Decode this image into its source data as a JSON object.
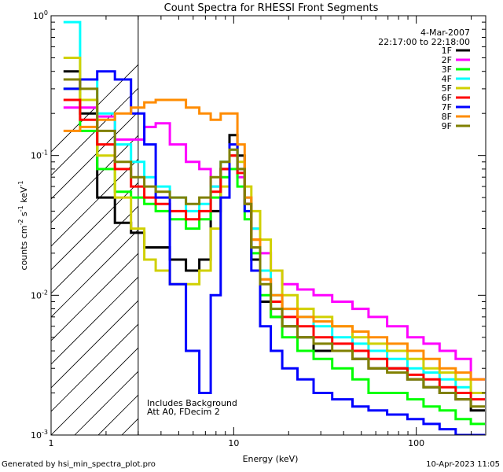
{
  "chart_data": {
    "type": "line",
    "title": "Count Spectra for RHESSI Front Segments",
    "xlabel": "Energy (keV)",
    "ylabel_parts": [
      "counts cm",
      "-2",
      " s",
      "-1",
      " keV",
      "-1"
    ],
    "xscale": "log",
    "yscale": "log",
    "xlim": [
      1,
      240
    ],
    "ylim": [
      0.001,
      1
    ],
    "x_ticks": [
      {
        "value": 1,
        "label": "1"
      },
      {
        "value": 10,
        "label": "10"
      },
      {
        "value": 100,
        "label": "100"
      }
    ],
    "y_ticks": [
      {
        "value": 0.001,
        "base": "10",
        "exp": "-3"
      },
      {
        "value": 0.01,
        "base": "10",
        "exp": "-2"
      },
      {
        "value": 0.1,
        "base": "10",
        "exp": "-1"
      },
      {
        "value": 1,
        "base": "10",
        "exp": "0"
      }
    ],
    "header_date": "4-Mar-2007",
    "header_time": "22:17:00 to 22:18:00",
    "annotations": [
      "Includes Background",
      "Att A0, FDecim 2"
    ],
    "hatched_region_upper_energy": 3,
    "series": [
      {
        "name": "1F",
        "color": "#000000",
        "x": [
          1.3,
          1.6,
          2.0,
          2.5,
          3.0,
          3.5,
          4.0,
          5.0,
          6.0,
          7.0,
          8.0,
          9.0,
          10.0,
          11.0,
          12.0,
          13.0,
          15.0,
          17.0,
          20.0,
          25.0,
          30.0,
          40.0,
          50.0,
          60.0,
          80.0,
          100.0,
          120.0,
          150.0,
          180.0,
          220.0
        ],
        "values": [
          0.4,
          0.2,
          0.05,
          0.033,
          0.028,
          0.022,
          0.022,
          0.018,
          0.015,
          0.018,
          0.04,
          0.08,
          0.14,
          0.1,
          0.045,
          0.018,
          0.009,
          0.007,
          0.006,
          0.005,
          0.004,
          0.004,
          0.0035,
          0.003,
          0.003,
          0.0025,
          0.0022,
          0.002,
          0.0018,
          0.0015
        ]
      },
      {
        "name": "2F",
        "color": "#ff00ff",
        "x": [
          1.3,
          1.6,
          2.0,
          2.5,
          3.0,
          3.5,
          4.0,
          5.0,
          6.0,
          7.0,
          8.0,
          9.0,
          10.0,
          11.0,
          12.0,
          13.0,
          15.0,
          17.0,
          20.0,
          25.0,
          30.0,
          40.0,
          50.0,
          60.0,
          80.0,
          100.0,
          120.0,
          150.0,
          180.0,
          220.0
        ],
        "values": [
          0.22,
          0.22,
          0.19,
          0.13,
          0.13,
          0.16,
          0.17,
          0.12,
          0.09,
          0.08,
          0.06,
          0.08,
          0.1,
          0.07,
          0.05,
          0.03,
          0.02,
          0.015,
          0.012,
          0.011,
          0.01,
          0.009,
          0.008,
          0.007,
          0.006,
          0.005,
          0.0045,
          0.004,
          0.0035,
          0.0025
        ]
      },
      {
        "name": "3F",
        "color": "#00ff00",
        "x": [
          1.3,
          1.6,
          2.0,
          2.5,
          3.0,
          3.5,
          4.0,
          5.0,
          6.0,
          7.0,
          8.0,
          9.0,
          10.0,
          11.0,
          12.0,
          13.0,
          15.0,
          17.0,
          20.0,
          25.0,
          30.0,
          40.0,
          50.0,
          60.0,
          80.0,
          100.0,
          120.0,
          150.0,
          180.0,
          220.0
        ],
        "values": [
          0.3,
          0.15,
          0.08,
          0.055,
          0.05,
          0.045,
          0.04,
          0.035,
          0.03,
          0.035,
          0.05,
          0.07,
          0.08,
          0.06,
          0.035,
          0.02,
          0.01,
          0.007,
          0.005,
          0.004,
          0.0035,
          0.003,
          0.0025,
          0.002,
          0.002,
          0.0018,
          0.0016,
          0.0015,
          0.0013,
          0.0012
        ]
      },
      {
        "name": "4F",
        "color": "#00ffff",
        "x": [
          1.3,
          1.6,
          2.0,
          2.5,
          3.0,
          3.5,
          4.0,
          5.0,
          6.0,
          7.0,
          8.0,
          9.0,
          10.0,
          11.0,
          12.0,
          13.0,
          15.0,
          17.0,
          20.0,
          25.0,
          30.0,
          40.0,
          50.0,
          60.0,
          80.0,
          100.0,
          120.0,
          150.0,
          180.0,
          220.0
        ],
        "values": [
          0.9,
          0.35,
          0.2,
          0.12,
          0.09,
          0.07,
          0.06,
          0.05,
          0.04,
          0.045,
          0.06,
          0.09,
          0.11,
          0.08,
          0.05,
          0.03,
          0.015,
          0.01,
          0.008,
          0.007,
          0.006,
          0.005,
          0.0045,
          0.004,
          0.0035,
          0.003,
          0.0028,
          0.0025,
          0.0022,
          0.002
        ]
      },
      {
        "name": "5F",
        "color": "#d0d000",
        "x": [
          1.3,
          1.6,
          2.0,
          2.5,
          3.0,
          3.5,
          4.0,
          5.0,
          6.0,
          7.0,
          8.0,
          9.0,
          10.0,
          11.0,
          12.0,
          13.0,
          15.0,
          17.0,
          20.0,
          25.0,
          30.0,
          40.0,
          50.0,
          60.0,
          80.0,
          100.0,
          120.0,
          150.0,
          180.0,
          220.0
        ],
        "values": [
          0.5,
          0.25,
          0.1,
          0.05,
          0.03,
          0.018,
          0.015,
          0.012,
          0.012,
          0.015,
          0.03,
          0.06,
          0.1,
          0.09,
          0.06,
          0.04,
          0.025,
          0.015,
          0.01,
          0.008,
          0.007,
          0.006,
          0.005,
          0.0045,
          0.004,
          0.0035,
          0.003,
          0.0028,
          0.0025,
          0.002
        ]
      },
      {
        "name": "6F",
        "color": "#ff0000",
        "x": [
          1.3,
          1.6,
          2.0,
          2.5,
          3.0,
          3.5,
          4.0,
          5.0,
          6.0,
          7.0,
          8.0,
          9.0,
          10.0,
          11.0,
          12.0,
          13.0,
          15.0,
          17.0,
          20.0,
          25.0,
          30.0,
          40.0,
          50.0,
          60.0,
          80.0,
          100.0,
          120.0,
          150.0,
          180.0,
          220.0
        ],
        "values": [
          0.25,
          0.18,
          0.12,
          0.08,
          0.06,
          0.05,
          0.045,
          0.04,
          0.035,
          0.04,
          0.055,
          0.08,
          0.1,
          0.075,
          0.045,
          0.025,
          0.013,
          0.009,
          0.007,
          0.006,
          0.005,
          0.0045,
          0.004,
          0.0035,
          0.003,
          0.0027,
          0.0025,
          0.0022,
          0.002,
          0.0018
        ]
      },
      {
        "name": "7F",
        "color": "#0000ff",
        "x": [
          1.3,
          1.6,
          2.0,
          2.5,
          3.0,
          3.5,
          4.0,
          5.0,
          6.0,
          7.0,
          8.0,
          9.0,
          10.0,
          11.0,
          12.0,
          13.0,
          15.0,
          17.0,
          20.0,
          25.0,
          30.0,
          40.0,
          50.0,
          60.0,
          80.0,
          100.0,
          120.0,
          150.0,
          180.0,
          220.0
        ],
        "values": [
          0.3,
          0.35,
          0.4,
          0.35,
          0.2,
          0.12,
          0.05,
          0.012,
          0.004,
          0.002,
          0.01,
          0.05,
          0.12,
          0.08,
          0.04,
          0.015,
          0.006,
          0.004,
          0.003,
          0.0025,
          0.002,
          0.0018,
          0.0016,
          0.0015,
          0.0014,
          0.0013,
          0.0012,
          0.0011,
          0.001,
          0.001
        ]
      },
      {
        "name": "8F",
        "color": "#ff8c00",
        "x": [
          1.3,
          1.6,
          2.0,
          2.5,
          3.0,
          3.5,
          4.0,
          5.0,
          6.0,
          7.0,
          8.0,
          9.0,
          10.0,
          11.0,
          12.0,
          13.0,
          15.0,
          17.0,
          20.0,
          25.0,
          30.0,
          40.0,
          50.0,
          60.0,
          80.0,
          100.0,
          120.0,
          150.0,
          180.0,
          220.0
        ],
        "values": [
          0.15,
          0.16,
          0.18,
          0.2,
          0.22,
          0.24,
          0.25,
          0.25,
          0.22,
          0.2,
          0.18,
          0.2,
          0.2,
          0.12,
          0.05,
          0.025,
          0.013,
          0.01,
          0.008,
          0.007,
          0.0065,
          0.006,
          0.0055,
          0.005,
          0.0045,
          0.004,
          0.0035,
          0.003,
          0.0028,
          0.0025
        ]
      },
      {
        "name": "9F",
        "color": "#808000",
        "x": [
          1.3,
          1.6,
          2.0,
          2.5,
          3.0,
          3.5,
          4.0,
          5.0,
          6.0,
          7.0,
          8.0,
          9.0,
          10.0,
          11.0,
          12.0,
          13.0,
          15.0,
          17.0,
          20.0,
          25.0,
          30.0,
          40.0,
          50.0,
          60.0,
          80.0,
          100.0,
          120.0,
          150.0,
          180.0,
          220.0
        ],
        "values": [
          0.35,
          0.3,
          0.15,
          0.09,
          0.07,
          0.06,
          0.055,
          0.05,
          0.045,
          0.05,
          0.07,
          0.09,
          0.11,
          0.08,
          0.045,
          0.022,
          0.012,
          0.008,
          0.006,
          0.005,
          0.0045,
          0.004,
          0.0035,
          0.003,
          0.0028,
          0.0025,
          0.0022,
          0.002,
          0.0018,
          0.0016
        ]
      }
    ]
  },
  "footer": {
    "generated_by": "Generated by hsi_min_spectra_plot.pro",
    "date": "10-Apr-2023 11:05"
  }
}
